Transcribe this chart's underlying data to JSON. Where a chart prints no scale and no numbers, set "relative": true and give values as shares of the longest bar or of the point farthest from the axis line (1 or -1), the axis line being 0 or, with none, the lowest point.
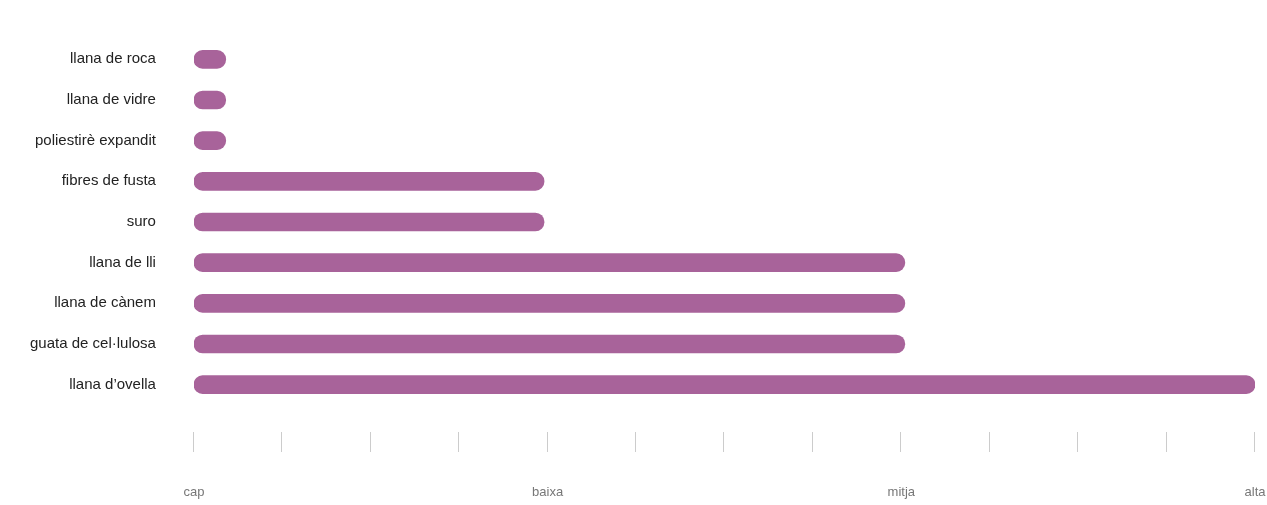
{
  "chart_data": {
    "type": "bar",
    "orientation": "horizontal",
    "relative": true,
    "categories": [
      "llana de roca",
      "llana de vidre",
      "poliestirè expandit",
      "fibres de fusta",
      "suro",
      "llana de lli",
      "llana de cànem",
      "guata de cel·lulosa",
      "llana d’ovella"
    ],
    "values": [
      0.03,
      0.03,
      0.03,
      0.33,
      0.33,
      0.67,
      0.67,
      0.67,
      1
    ],
    "color": "#a8639a",
    "annotations": [
      "cap",
      "baixa",
      "mitja",
      "alta"
    ]
  }
}
